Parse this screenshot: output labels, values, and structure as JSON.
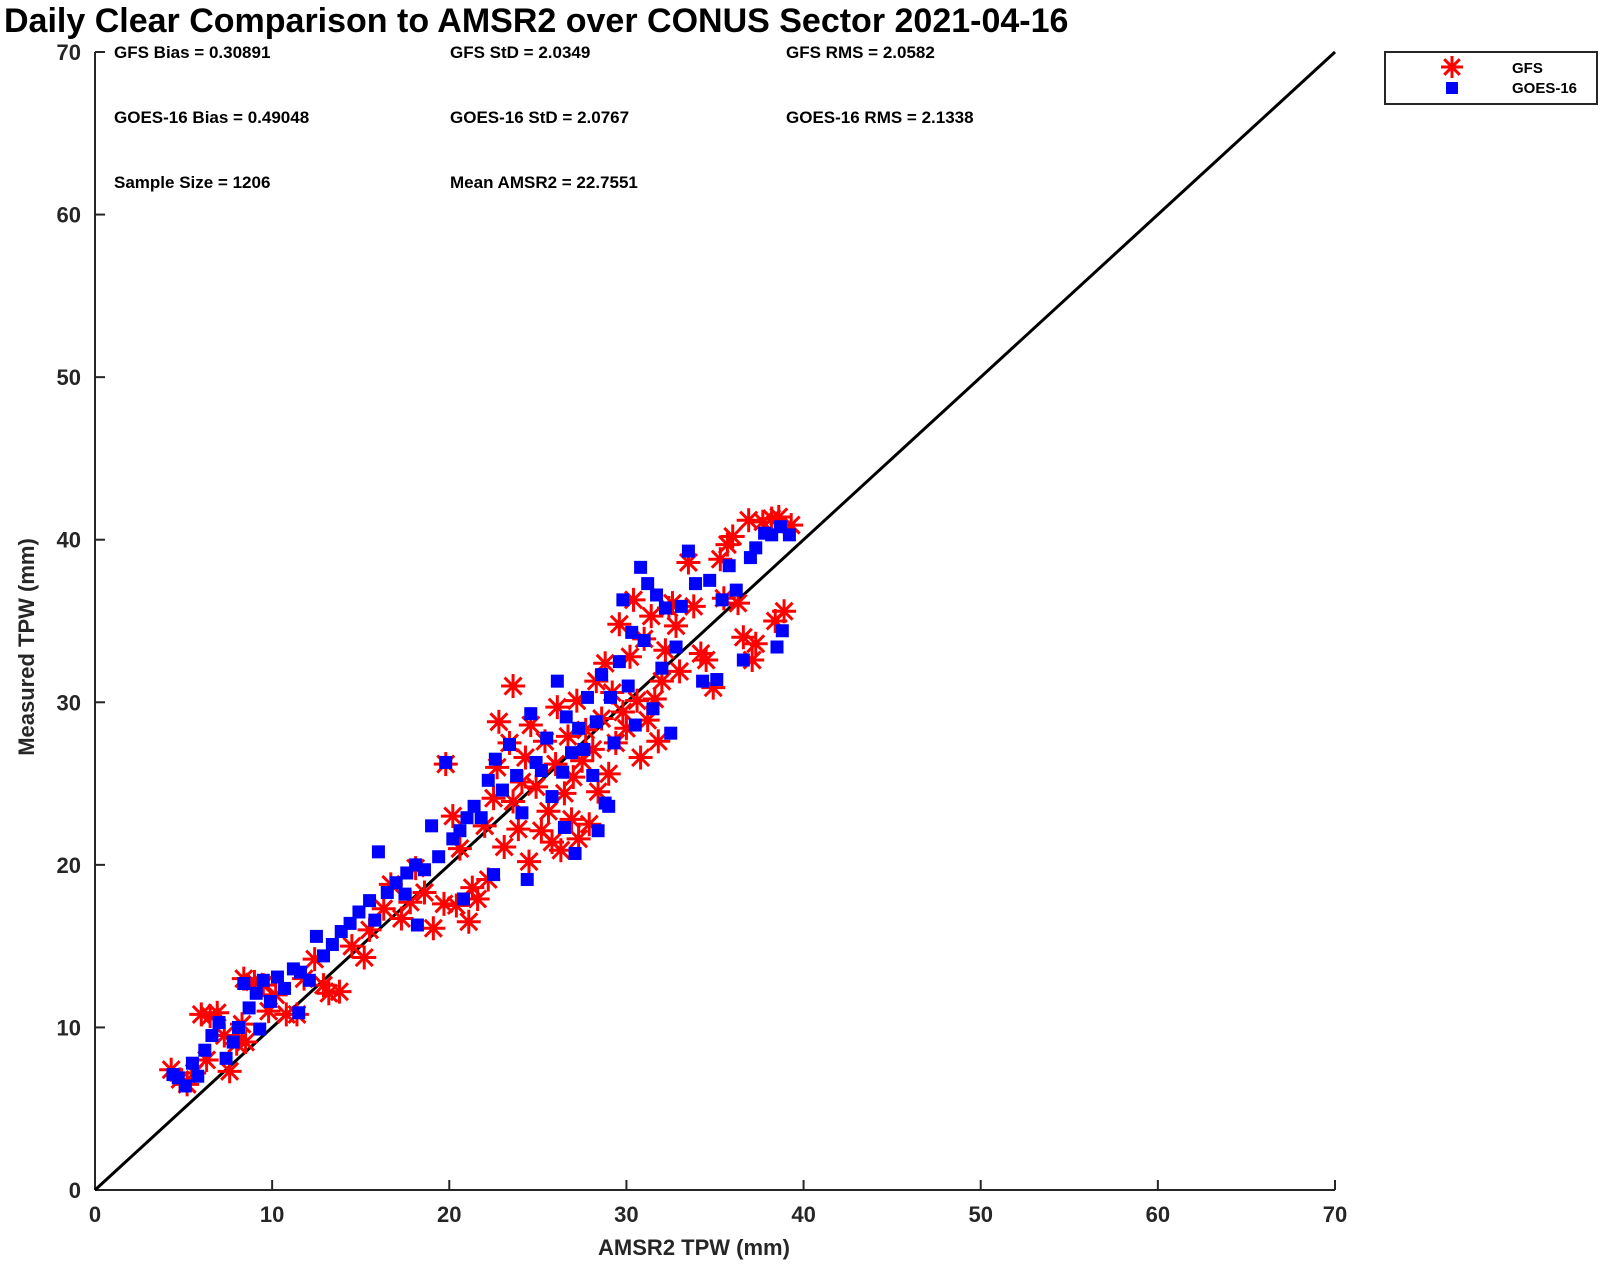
{
  "chart_data": {
    "type": "scatter",
    "title": "Daily Clear Comparison to AMSR2 over CONUS Sector 2021-04-16",
    "xlabel": "AMSR2 TPW (mm)",
    "ylabel": "Measured TPW (mm)",
    "xlim": [
      0,
      70
    ],
    "ylim": [
      0,
      70
    ],
    "xticks": [
      "0",
      "10",
      "20",
      "30",
      "40",
      "50",
      "60",
      "70"
    ],
    "yticks": [
      "0",
      "10",
      "20",
      "30",
      "40",
      "50",
      "60",
      "70"
    ],
    "grid": false,
    "legend_position": "top-right, outside plot",
    "reference_line": {
      "x": [
        0,
        70
      ],
      "y": [
        0,
        70
      ],
      "color": "#000000"
    },
    "stats": [
      "GFS Bias = 0.30891",
      "GFS StD = 2.0349",
      "GFS RMS = 2.0582",
      "GOES-16 Bias = 0.49048",
      "GOES-16 StD = 2.0767",
      "GOES-16 RMS = 2.1338",
      "Sample Size = 1206",
      "Mean AMSR2 = 22.7551"
    ],
    "series": [
      {
        "name": "GFS",
        "marker": "asterisk",
        "color": "#ff0000",
        "points": [
          [
            4.3,
            7.4
          ],
          [
            4.8,
            6.8
          ],
          [
            5.2,
            6.5
          ],
          [
            5.6,
            7.2
          ],
          [
            6.0,
            10.8
          ],
          [
            6.3,
            8.0
          ],
          [
            6.5,
            10.7
          ],
          [
            6.9,
            10.9
          ],
          [
            7.3,
            9.5
          ],
          [
            7.6,
            7.3
          ],
          [
            8.0,
            9.0
          ],
          [
            8.3,
            10.2
          ],
          [
            8.5,
            9.1
          ],
          [
            8.4,
            13.0
          ],
          [
            9.0,
            12.8
          ],
          [
            9.5,
            12.6
          ],
          [
            9.8,
            11.0
          ],
          [
            10.2,
            12.0
          ],
          [
            10.8,
            10.8
          ],
          [
            11.4,
            10.8
          ],
          [
            11.8,
            13.0
          ],
          [
            12.4,
            14.2
          ],
          [
            12.9,
            12.6
          ],
          [
            13.2,
            12.1
          ],
          [
            13.8,
            12.2
          ],
          [
            14.5,
            15.0
          ],
          [
            15.2,
            14.3
          ],
          [
            15.5,
            16.0
          ],
          [
            16.3,
            17.3
          ],
          [
            16.7,
            18.8
          ],
          [
            17.3,
            16.7
          ],
          [
            17.8,
            17.7
          ],
          [
            18.1,
            19.8
          ],
          [
            18.6,
            18.3
          ],
          [
            19.1,
            16.1
          ],
          [
            19.7,
            17.6
          ],
          [
            20.4,
            17.5
          ],
          [
            20.6,
            21.0
          ],
          [
            21.1,
            16.5
          ],
          [
            21.3,
            18.6
          ],
          [
            21.6,
            17.9
          ],
          [
            19.8,
            26.2
          ],
          [
            20.2,
            23.0
          ],
          [
            22.0,
            22.4
          ],
          [
            22.2,
            19.1
          ],
          [
            22.5,
            24.1
          ],
          [
            22.7,
            26.0
          ],
          [
            22.8,
            28.8
          ],
          [
            23.1,
            21.1
          ],
          [
            23.4,
            27.5
          ],
          [
            23.6,
            23.9
          ],
          [
            23.9,
            22.2
          ],
          [
            24.1,
            25.1
          ],
          [
            24.3,
            26.6
          ],
          [
            24.5,
            20.2
          ],
          [
            24.6,
            28.6
          ],
          [
            24.9,
            24.8
          ],
          [
            25.2,
            22.1
          ],
          [
            25.4,
            27.6
          ],
          [
            25.6,
            23.3
          ],
          [
            25.8,
            21.4
          ],
          [
            26.0,
            26.2
          ],
          [
            26.1,
            29.7
          ],
          [
            26.3,
            20.9
          ],
          [
            26.5,
            24.4
          ],
          [
            26.7,
            27.9
          ],
          [
            26.9,
            22.8
          ],
          [
            27.0,
            25.4
          ],
          [
            27.2,
            30.1
          ],
          [
            27.3,
            21.6
          ],
          [
            27.5,
            26.4
          ],
          [
            27.7,
            28.3
          ],
          [
            27.9,
            22.5
          ],
          [
            28.1,
            27.1
          ],
          [
            28.3,
            31.3
          ],
          [
            28.4,
            24.5
          ],
          [
            28.6,
            29.0
          ],
          [
            28.8,
            32.4
          ],
          [
            29.0,
            25.6
          ],
          [
            29.2,
            30.6
          ],
          [
            29.4,
            27.5
          ],
          [
            29.6,
            34.8
          ],
          [
            29.8,
            29.4
          ],
          [
            30.0,
            28.4
          ],
          [
            30.2,
            32.8
          ],
          [
            30.4,
            36.3
          ],
          [
            30.6,
            30.1
          ],
          [
            30.8,
            26.6
          ],
          [
            31.0,
            33.9
          ],
          [
            31.2,
            28.9
          ],
          [
            31.4,
            35.3
          ],
          [
            31.6,
            30.2
          ],
          [
            31.8,
            27.6
          ],
          [
            32.0,
            31.3
          ],
          [
            32.2,
            33.2
          ],
          [
            32.4,
            35.8
          ],
          [
            32.6,
            36.1
          ],
          [
            32.8,
            34.7
          ],
          [
            33.0,
            31.9
          ],
          [
            33.5,
            38.6
          ],
          [
            33.8,
            35.9
          ],
          [
            34.2,
            33.0
          ],
          [
            34.5,
            32.6
          ],
          [
            34.9,
            30.9
          ],
          [
            35.3,
            38.8
          ],
          [
            35.7,
            39.7
          ],
          [
            36.0,
            40.2
          ],
          [
            36.3,
            36.1
          ],
          [
            36.6,
            34.0
          ],
          [
            36.9,
            41.2
          ],
          [
            37.3,
            33.6
          ],
          [
            37.7,
            41.1
          ],
          [
            38.2,
            41.3
          ],
          [
            38.6,
            41.4
          ],
          [
            38.9,
            35.6
          ],
          [
            39.3,
            40.9
          ],
          [
            38.4,
            35.0
          ],
          [
            37.1,
            32.6
          ],
          [
            35.5,
            36.4
          ],
          [
            23.6,
            31.0
          ]
        ]
      },
      {
        "name": "GOES-16",
        "marker": "square",
        "color": "#0000ff",
        "points": [
          [
            4.4,
            7.1
          ],
          [
            4.7,
            6.9
          ],
          [
            5.1,
            6.4
          ],
          [
            5.5,
            7.8
          ],
          [
            5.8,
            7.0
          ],
          [
            6.2,
            8.6
          ],
          [
            6.6,
            9.5
          ],
          [
            7.0,
            10.3
          ],
          [
            7.4,
            8.1
          ],
          [
            7.8,
            9.1
          ],
          [
            8.1,
            10.0
          ],
          [
            8.4,
            12.7
          ],
          [
            8.7,
            11.2
          ],
          [
            9.1,
            12.1
          ],
          [
            9.5,
            12.9
          ],
          [
            9.9,
            11.6
          ],
          [
            10.3,
            13.1
          ],
          [
            10.7,
            12.4
          ],
          [
            11.2,
            13.6
          ],
          [
            11.6,
            13.4
          ],
          [
            12.1,
            12.9
          ],
          [
            12.5,
            15.6
          ],
          [
            12.9,
            14.4
          ],
          [
            13.4,
            15.1
          ],
          [
            13.9,
            15.9
          ],
          [
            14.4,
            16.4
          ],
          [
            14.9,
            17.1
          ],
          [
            15.5,
            17.8
          ],
          [
            16.0,
            20.8
          ],
          [
            16.5,
            18.3
          ],
          [
            17.0,
            18.9
          ],
          [
            17.6,
            19.5
          ],
          [
            18.1,
            20.0
          ],
          [
            18.6,
            19.7
          ],
          [
            19.0,
            22.4
          ],
          [
            19.4,
            20.5
          ],
          [
            19.8,
            26.3
          ],
          [
            20.2,
            21.6
          ],
          [
            20.6,
            22.1
          ],
          [
            21.0,
            22.9
          ],
          [
            21.4,
            23.6
          ],
          [
            21.8,
            22.9
          ],
          [
            22.2,
            25.2
          ],
          [
            22.6,
            26.5
          ],
          [
            23.0,
            24.6
          ],
          [
            23.4,
            27.4
          ],
          [
            23.8,
            25.5
          ],
          [
            24.1,
            23.2
          ],
          [
            24.4,
            19.1
          ],
          [
            24.6,
            29.3
          ],
          [
            24.9,
            26.3
          ],
          [
            25.2,
            25.8
          ],
          [
            25.5,
            27.8
          ],
          [
            25.8,
            24.2
          ],
          [
            26.1,
            31.3
          ],
          [
            26.4,
            25.7
          ],
          [
            26.6,
            29.1
          ],
          [
            26.9,
            26.9
          ],
          [
            27.1,
            20.7
          ],
          [
            27.3,
            28.4
          ],
          [
            27.6,
            27.1
          ],
          [
            27.8,
            30.3
          ],
          [
            28.1,
            25.5
          ],
          [
            28.3,
            28.8
          ],
          [
            28.6,
            31.7
          ],
          [
            28.8,
            23.8
          ],
          [
            29.1,
            30.3
          ],
          [
            29.3,
            27.5
          ],
          [
            29.6,
            32.5
          ],
          [
            29.8,
            36.3
          ],
          [
            30.1,
            31.0
          ],
          [
            30.3,
            34.3
          ],
          [
            30.5,
            28.6
          ],
          [
            30.8,
            38.3
          ],
          [
            31.0,
            33.8
          ],
          [
            31.2,
            37.3
          ],
          [
            31.5,
            29.6
          ],
          [
            31.7,
            36.6
          ],
          [
            32.0,
            32.1
          ],
          [
            32.2,
            35.8
          ],
          [
            32.5,
            28.1
          ],
          [
            32.8,
            33.4
          ],
          [
            33.1,
            35.9
          ],
          [
            33.5,
            39.3
          ],
          [
            33.9,
            37.3
          ],
          [
            34.3,
            31.3
          ],
          [
            34.7,
            37.5
          ],
          [
            35.1,
            31.4
          ],
          [
            35.4,
            36.3
          ],
          [
            35.8,
            38.4
          ],
          [
            36.2,
            36.9
          ],
          [
            36.6,
            32.6
          ],
          [
            37.0,
            38.9
          ],
          [
            37.3,
            39.5
          ],
          [
            37.8,
            40.4
          ],
          [
            38.2,
            40.3
          ],
          [
            38.5,
            33.4
          ],
          [
            38.7,
            40.8
          ],
          [
            39.2,
            40.3
          ],
          [
            38.8,
            34.4
          ],
          [
            28.4,
            22.1
          ],
          [
            29.0,
            23.6
          ],
          [
            22.5,
            19.4
          ],
          [
            18.2,
            16.3
          ],
          [
            17.5,
            18.2
          ],
          [
            15.8,
            16.6
          ],
          [
            11.5,
            10.9
          ],
          [
            9.3,
            9.9
          ],
          [
            26.5,
            22.3
          ],
          [
            20.8,
            17.9
          ]
        ]
      }
    ]
  }
}
